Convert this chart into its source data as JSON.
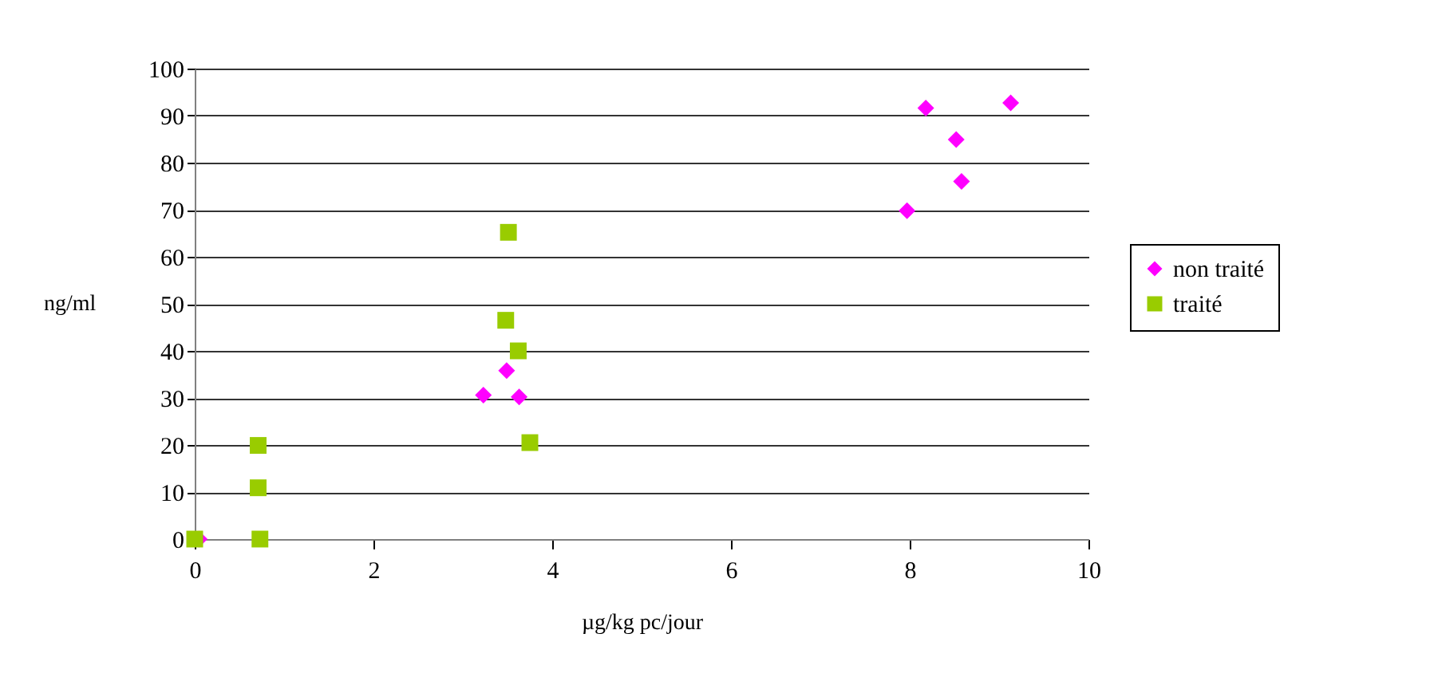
{
  "chart_data": {
    "type": "scatter",
    "xlabel": "µg/kg pc/jour",
    "ylabel": "ng/ml",
    "xlim": [
      0,
      10
    ],
    "xticks": [
      0,
      2,
      4,
      6,
      8,
      10
    ],
    "ylim": [
      0,
      100
    ],
    "yticks": [
      0,
      10,
      20,
      30,
      40,
      50,
      60,
      70,
      80,
      90,
      100
    ],
    "grid": "y",
    "legend": "right",
    "series": [
      {
        "name": "non traité",
        "color": "#ff00ff",
        "marker": "diamond",
        "x": [
          0.05,
          3.23,
          3.49,
          3.63,
          8.18,
          9.13,
          8.52,
          8.58,
          7.97
        ],
        "values": [
          0,
          30.6,
          35.8,
          30.2,
          91.6,
          92.7,
          84.9,
          76.0,
          69.8
        ]
      },
      {
        "name": "traité",
        "color": "#99cc00",
        "marker": "square",
        "x": [
          0,
          0.71,
          0.71,
          0.73,
          3.51,
          3.48,
          3.62,
          3.75
        ],
        "values": [
          0,
          19.9,
          10.9,
          0,
          65.2,
          46.5,
          40.0,
          20.5
        ]
      }
    ]
  }
}
